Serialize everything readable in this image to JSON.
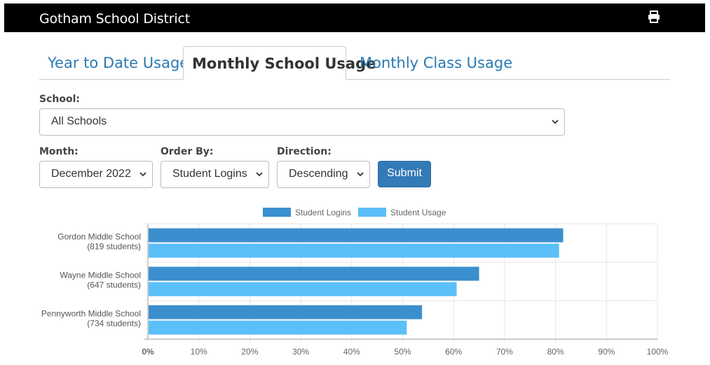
{
  "app": {
    "title": "Gotham School District",
    "print_icon": "print-icon"
  },
  "tabs": [
    {
      "label": "Year to Date Usage",
      "active": false
    },
    {
      "label": "Monthly School Usage",
      "active": true
    },
    {
      "label": "Monthly Class Usage",
      "active": false
    }
  ],
  "filters": {
    "school_label": "School:",
    "school_value": "All Schools",
    "month_label": "Month:",
    "month_value": "December 2022",
    "order_label": "Order By:",
    "order_value": "Student Logins",
    "direction_label": "Direction:",
    "direction_value": "Descending",
    "submit_label": "Submit"
  },
  "colors": {
    "logins": "#3b8fce",
    "usage": "#5bbff8",
    "accent": "#337ab7",
    "link": "#2a7ab3"
  },
  "chart_data": {
    "type": "bar",
    "orientation": "horizontal",
    "categories": [
      [
        "Gordon Middle School",
        "(819 students)"
      ],
      [
        "Wayne Middle School",
        "(647 students)"
      ],
      [
        "Pennyworth Middle School",
        "(734 students)"
      ]
    ],
    "series": [
      {
        "name": "Student Logins",
        "values": [
          81.5,
          65,
          53.8
        ]
      },
      {
        "name": "Student Usage",
        "values": [
          80.7,
          60.6,
          50.8
        ]
      }
    ],
    "xlim": [
      0,
      100
    ],
    "x_ticks": [
      "0%",
      "10%",
      "20%",
      "30%",
      "40%",
      "50%",
      "60%",
      "70%",
      "80%",
      "90%",
      "100%"
    ],
    "legend": "top",
    "grid": true
  }
}
